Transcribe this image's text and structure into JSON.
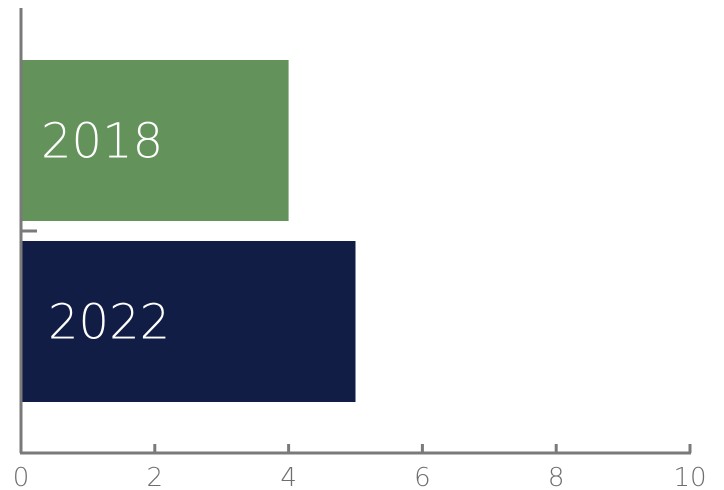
{
  "chart_data": {
    "type": "bar",
    "orientation": "horizontal",
    "categories": [
      "2018",
      "2022"
    ],
    "values": [
      4,
      5
    ],
    "colors": [
      "#63925a",
      "#121d45"
    ],
    "xlim": [
      0,
      10
    ],
    "x_ticks": [
      0,
      2,
      4,
      6,
      8,
      10
    ],
    "title": "",
    "xlabel": "",
    "ylabel": "",
    "grid": false,
    "legend": "none",
    "axis_color": "#7a7a7a",
    "tick_label_color": "#6e6e6e"
  }
}
